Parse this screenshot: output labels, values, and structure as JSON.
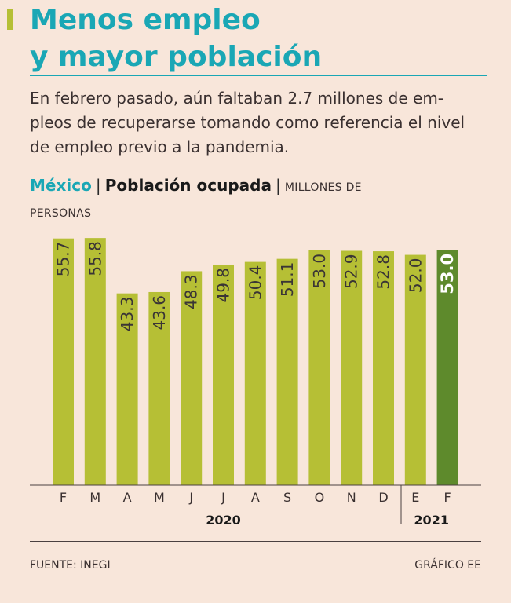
{
  "title": {
    "line1": "Menos empleo",
    "line2": "y mayor población"
  },
  "subtitle": {
    "line1": "En febrero pasado, aún faltaban 2.7 millones de em-",
    "line2": "pleos de recuperarse tomando como referencia el nivel",
    "line3": "de empleo previo a la pandemia."
  },
  "chart_header": {
    "country": "México",
    "separator": "|",
    "metric": "Población ocupada",
    "unit_line1": "MILLONES DE",
    "unit_line2": "PERSONAS"
  },
  "chart_data": {
    "type": "bar",
    "title": "Población ocupada",
    "ylabel": "Millones de personas",
    "categories": [
      "F",
      "M",
      "A",
      "M",
      "J",
      "J",
      "A",
      "S",
      "O",
      "N",
      "D",
      "E",
      "F"
    ],
    "values": [
      55.7,
      55.8,
      43.3,
      43.6,
      48.3,
      49.8,
      50.4,
      51.1,
      53.0,
      52.9,
      52.8,
      52.0,
      53.0
    ],
    "labels": [
      "55.7",
      "55.8",
      "43.3",
      "43.6",
      "48.3",
      "49.8",
      "50.4",
      "51.1",
      "53.0",
      "52.9",
      "52.8",
      "52.0",
      "53.0"
    ],
    "years": [
      {
        "label": "2020",
        "from": 0,
        "to": 10
      },
      {
        "label": "2021",
        "from": 11,
        "to": 12
      }
    ],
    "highlight_index": 12,
    "ylim": [
      0,
      56
    ],
    "colors": {
      "bar": "#b6bf35",
      "highlight": "#5e8a2c",
      "label": "#3a3535",
      "highlight_label": "#ffffff"
    }
  },
  "footer": {
    "source": "FUENTE: INEGI",
    "credit": "GRÁFICO EE"
  }
}
